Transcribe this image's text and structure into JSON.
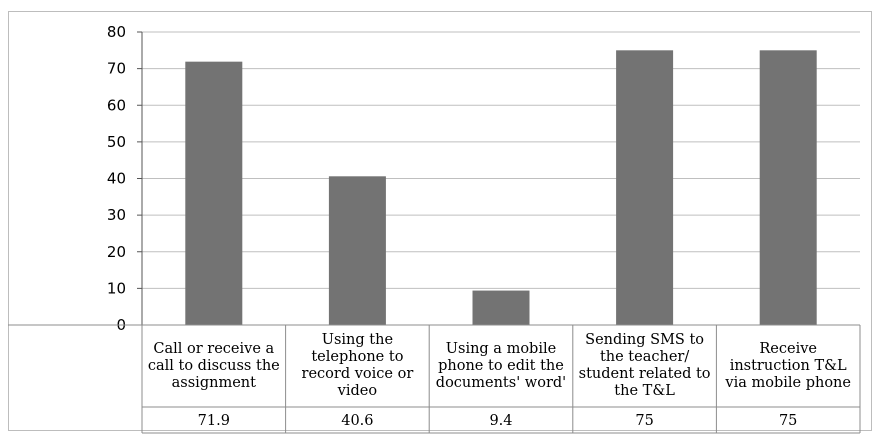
{
  "chart_data": {
    "type": "bar",
    "title": "",
    "xlabel": "",
    "ylabel": "",
    "ylim": [
      0,
      80
    ],
    "yticks": [
      0,
      10,
      20,
      30,
      40,
      50,
      60,
      70,
      80
    ],
    "grid": true,
    "legend": "none",
    "categories": [
      "Call or receive a call to discuss the assignment",
      "Using the telephone to record voice or video",
      "Using a mobile phone to edit the documents' word'",
      "Sending SMS to the teacher/ student related to the T&L",
      "Receive instruction T&L via mobile phone"
    ],
    "values": [
      71.9,
      40.6,
      9.4,
      75,
      75
    ],
    "value_labels": [
      "71.9",
      "40.6",
      "9.4",
      "75",
      "75"
    ],
    "bar_color": "#737373",
    "grid_color": "#bfbfbf"
  }
}
